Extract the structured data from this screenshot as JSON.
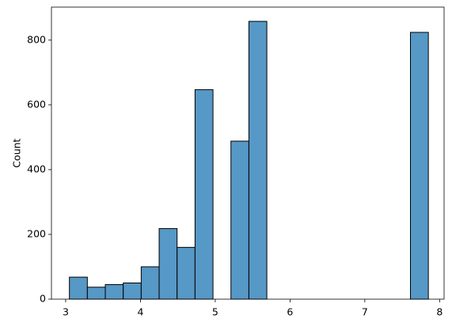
{
  "chart_data": {
    "type": "histogram",
    "ylabel": "Count",
    "bins": [
      3.05,
      3.29,
      3.53,
      3.77,
      4.01,
      4.25,
      4.49,
      4.73,
      4.97,
      5.21,
      5.45,
      5.69,
      5.93,
      6.17,
      6.41,
      6.65,
      6.89,
      7.13,
      7.37,
      7.61,
      7.85
    ],
    "counts": [
      68,
      37,
      45,
      50,
      100,
      218,
      160,
      647,
      0,
      488,
      858,
      0,
      0,
      0,
      0,
      0,
      0,
      0,
      0,
      824
    ],
    "color": "#5698c6",
    "edgecolor": "#000000",
    "xlim": [
      2.81,
      8.06
    ],
    "xticks": [
      3,
      4,
      5,
      6,
      7,
      8
    ],
    "ylim": [
      0,
      902
    ],
    "yticks": [
      0,
      200,
      400,
      600,
      800
    ]
  }
}
